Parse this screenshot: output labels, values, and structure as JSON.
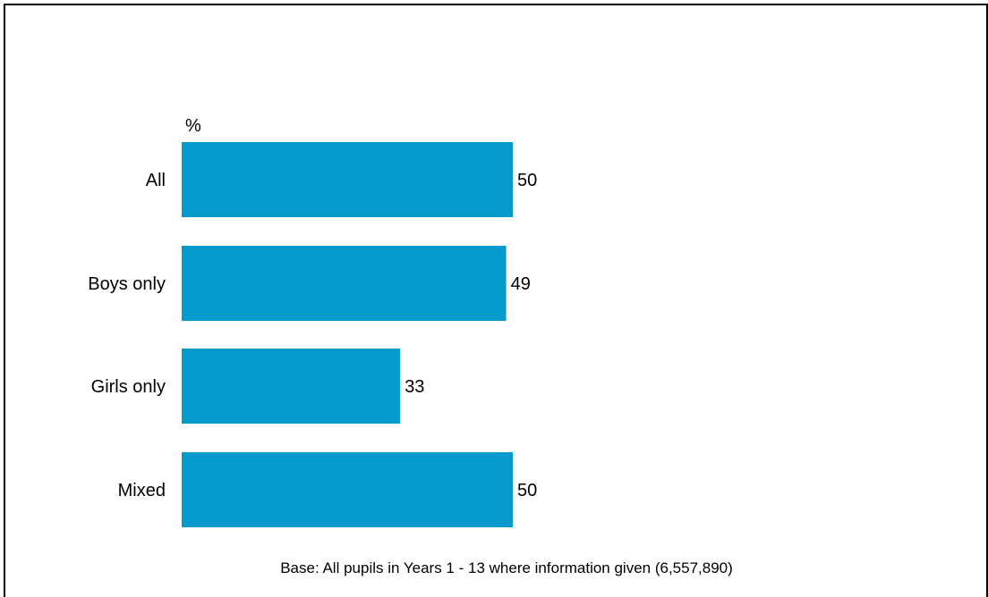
{
  "chart_data": {
    "type": "bar",
    "orientation": "horizontal",
    "categories": [
      "All",
      "Boys only",
      "Girls only",
      "Mixed"
    ],
    "values": [
      50,
      49,
      33,
      50
    ],
    "unit_label": "%",
    "note": "Base: All pupils in Years 1 - 13 where information given (6,557,890)",
    "xlim": [
      0,
      100
    ],
    "grid": false,
    "legend": "none",
    "bar_color": "#0599cc"
  }
}
